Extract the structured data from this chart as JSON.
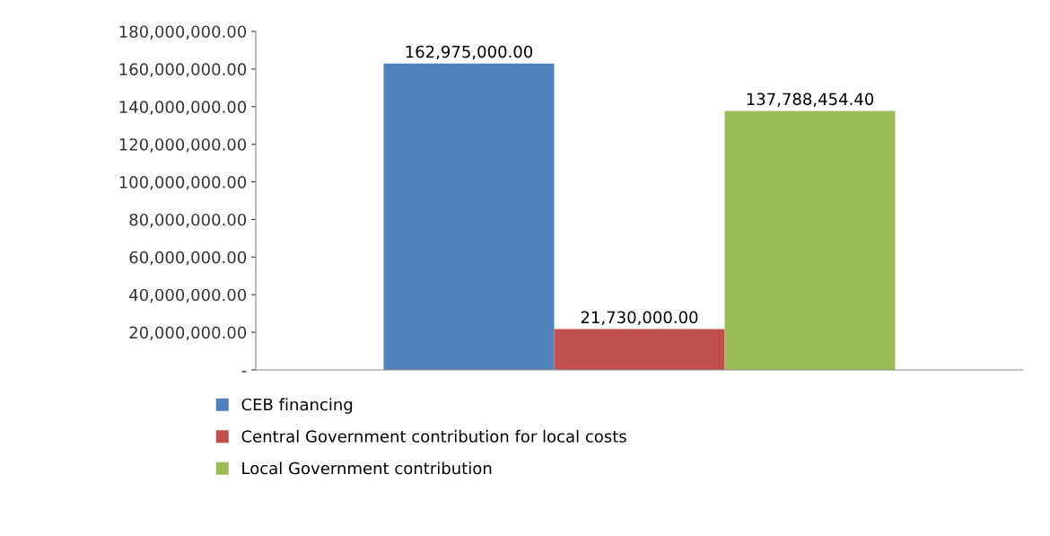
{
  "chart_data": {
    "type": "bar",
    "categories": [
      null
    ],
    "series": [
      {
        "name": "CEB financing",
        "color": "#4f81bd",
        "values": [
          162975000
        ],
        "value_labels": [
          "162,975,000.00"
        ]
      },
      {
        "name": "Central Government contribution for local costs",
        "color": "#c0504d",
        "values": [
          21730000
        ],
        "value_labels": [
          "21,730,000.00"
        ]
      },
      {
        "name": "Local Government contribution",
        "color": "#9bbb59",
        "values": [
          137788454.4
        ],
        "value_labels": [
          "137,788,454.40"
        ]
      }
    ],
    "ylim": [
      0,
      180000000
    ],
    "yticks": [
      {
        "value": 0,
        "label": "-"
      },
      {
        "value": 20000000,
        "label": "20,000,000.00"
      },
      {
        "value": 40000000,
        "label": "40,000,000.00"
      },
      {
        "value": 60000000,
        "label": "60,000,000.00"
      },
      {
        "value": 80000000,
        "label": "80,000,000.00"
      },
      {
        "value": 100000000,
        "label": "100,000,000.00"
      },
      {
        "value": 120000000,
        "label": "120,000,000.00"
      },
      {
        "value": 140000000,
        "label": "140,000,000.00"
      },
      {
        "value": 160000000,
        "label": "160,000,000.00"
      },
      {
        "value": 180000000,
        "label": "180,000,000.00"
      }
    ],
    "grid": false,
    "legend": "bottom",
    "tick_labels": "y"
  }
}
